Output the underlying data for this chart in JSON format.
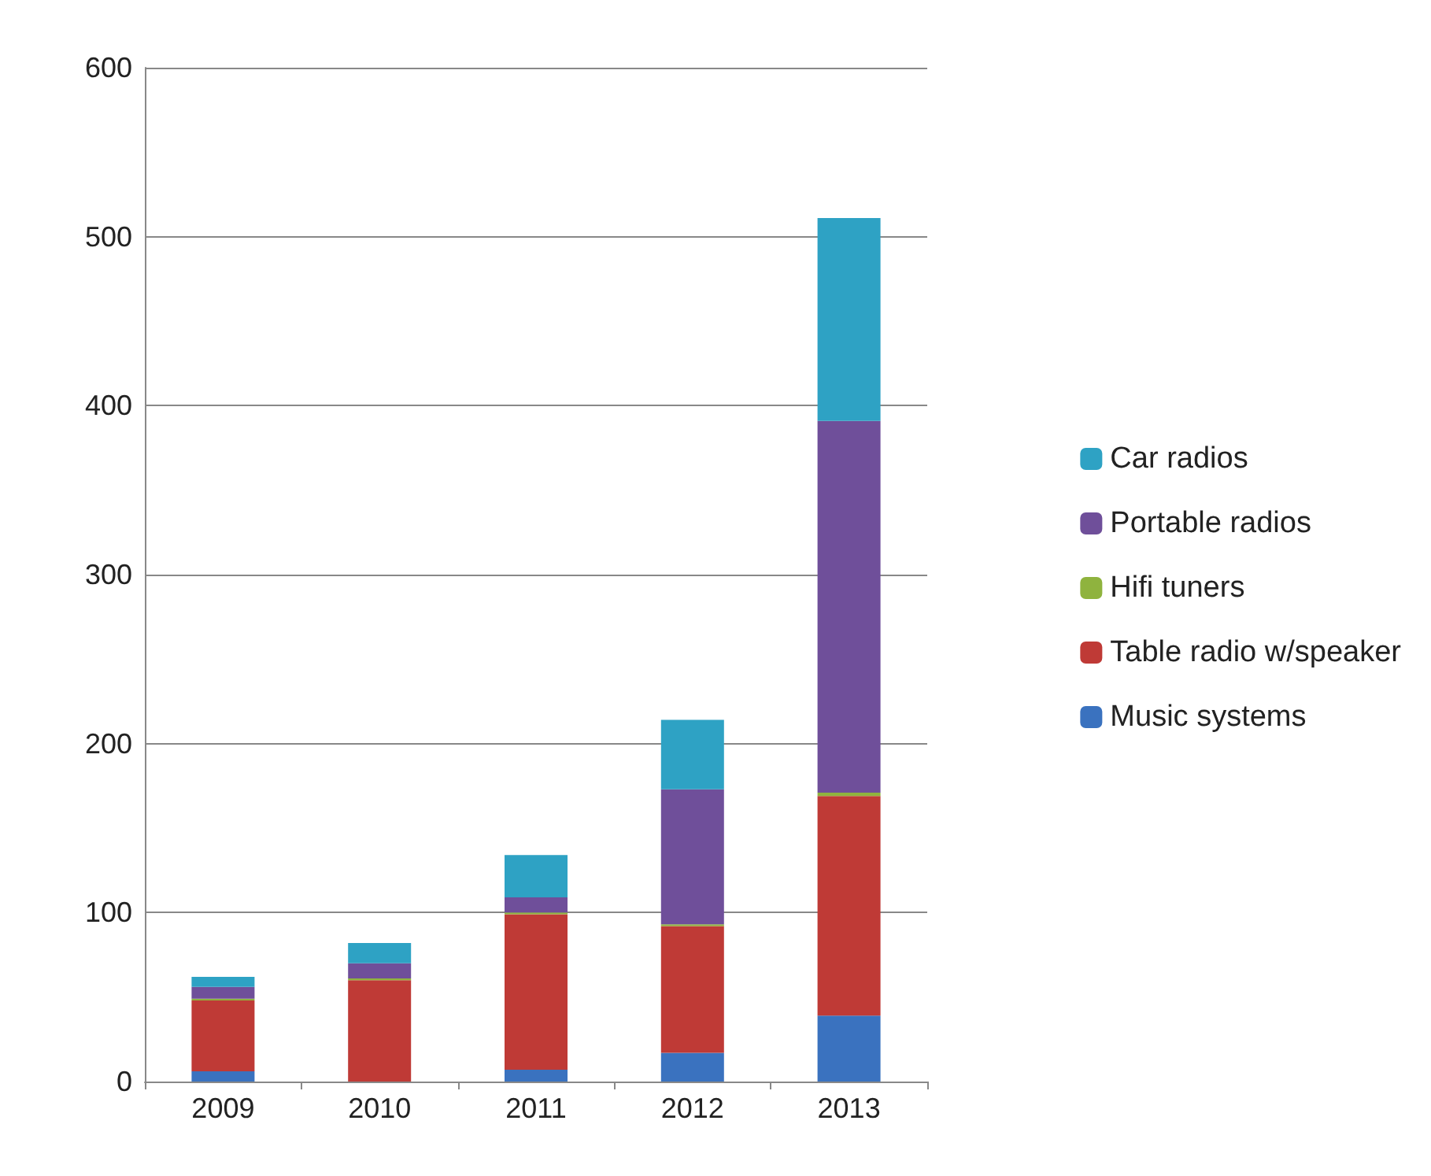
{
  "chart_data": {
    "type": "bar",
    "stacked": true,
    "categories": [
      "2009",
      "2010",
      "2011",
      "2012",
      "2013"
    ],
    "series": [
      {
        "name": "Music systems",
        "color": "#3a72bf",
        "values": [
          6,
          0,
          7,
          17,
          39
        ]
      },
      {
        "name": "Table radio w/speaker",
        "color": "#bf3a36",
        "values": [
          42,
          60,
          92,
          75,
          130
        ]
      },
      {
        "name": "Hifi tuners",
        "color": "#8fb33e",
        "values": [
          1,
          1,
          1,
          1,
          2
        ]
      },
      {
        "name": "Portable radios",
        "color": "#6f4f9a",
        "values": [
          7,
          9,
          9,
          80,
          220
        ]
      },
      {
        "name": "Car radios",
        "color": "#2ea2c4",
        "values": [
          6,
          12,
          25,
          41,
          120
        ]
      }
    ],
    "ylim": [
      0,
      600
    ],
    "yticks": [
      0,
      100,
      200,
      300,
      400,
      500,
      600
    ],
    "grid": "y",
    "legend": "right"
  }
}
